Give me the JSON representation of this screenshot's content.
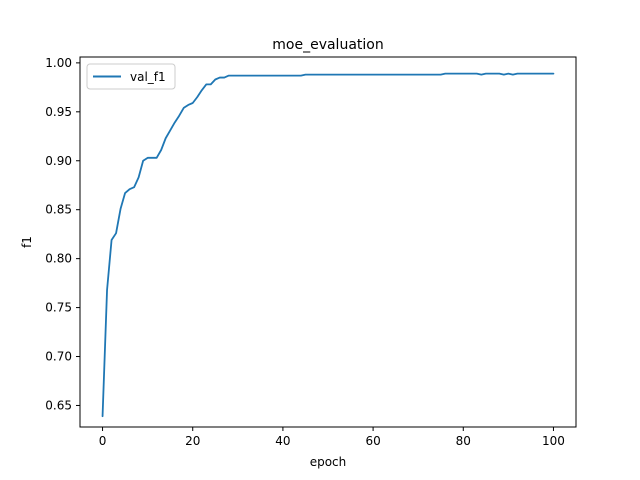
{
  "chart_data": {
    "type": "line",
    "title": "moe_evaluation",
    "xlabel": "epoch",
    "ylabel": "f1",
    "xlim": [
      -5,
      105
    ],
    "ylim": [
      0.628,
      1.006
    ],
    "xticks": [
      0,
      20,
      40,
      60,
      80,
      100
    ],
    "yticks": [
      0.65,
      0.7,
      0.75,
      0.8,
      0.85,
      0.9,
      0.95,
      1.0
    ],
    "xtick_labels": [
      "0",
      "20",
      "40",
      "60",
      "80",
      "100"
    ],
    "ytick_labels": [
      "0.65",
      "0.70",
      "0.75",
      "0.80",
      "0.85",
      "0.90",
      "0.95",
      "1.00"
    ],
    "grid": false,
    "legend": {
      "placement": "top-left",
      "entries": [
        "val_f1"
      ]
    },
    "series": [
      {
        "name": "val_f1",
        "color": "#1f77b4",
        "x": [
          0,
          1,
          2,
          3,
          4,
          5,
          6,
          7,
          8,
          9,
          10,
          11,
          12,
          13,
          14,
          15,
          16,
          17,
          18,
          19,
          20,
          21,
          22,
          23,
          24,
          25,
          26,
          27,
          28,
          29,
          30,
          31,
          32,
          33,
          34,
          35,
          36,
          37,
          38,
          39,
          40,
          41,
          42,
          43,
          44,
          45,
          46,
          47,
          48,
          49,
          50,
          51,
          52,
          53,
          54,
          55,
          56,
          57,
          58,
          59,
          60,
          61,
          62,
          63,
          64,
          65,
          66,
          67,
          68,
          69,
          70,
          71,
          72,
          73,
          74,
          75,
          76,
          77,
          78,
          79,
          80,
          81,
          82,
          83,
          84,
          85,
          86,
          87,
          88,
          89,
          90,
          91,
          92,
          93,
          94,
          95,
          96,
          97,
          98,
          99,
          100
        ],
        "values": [
          0.639,
          0.768,
          0.819,
          0.826,
          0.851,
          0.867,
          0.871,
          0.873,
          0.883,
          0.9,
          0.903,
          0.903,
          0.903,
          0.911,
          0.923,
          0.931,
          0.939,
          0.946,
          0.954,
          0.957,
          0.959,
          0.965,
          0.972,
          0.978,
          0.978,
          0.983,
          0.985,
          0.985,
          0.987,
          0.987,
          0.987,
          0.987,
          0.987,
          0.987,
          0.987,
          0.987,
          0.987,
          0.987,
          0.987,
          0.987,
          0.987,
          0.987,
          0.987,
          0.987,
          0.987,
          0.988,
          0.988,
          0.988,
          0.988,
          0.988,
          0.988,
          0.988,
          0.988,
          0.988,
          0.988,
          0.988,
          0.988,
          0.988,
          0.988,
          0.988,
          0.988,
          0.988,
          0.988,
          0.988,
          0.988,
          0.988,
          0.988,
          0.988,
          0.988,
          0.988,
          0.988,
          0.988,
          0.988,
          0.988,
          0.988,
          0.988,
          0.989,
          0.989,
          0.989,
          0.989,
          0.989,
          0.989,
          0.989,
          0.989,
          0.988,
          0.989,
          0.989,
          0.989,
          0.989,
          0.988,
          0.989,
          0.988,
          0.989,
          0.989,
          0.989,
          0.989,
          0.989,
          0.989,
          0.989,
          0.989,
          0.989
        ]
      }
    ]
  }
}
